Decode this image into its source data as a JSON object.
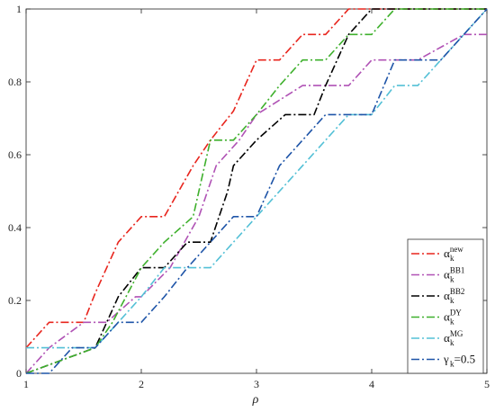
{
  "chart_data": {
    "type": "line",
    "title": "",
    "xlabel": "ρ",
    "ylabel": "",
    "xlim": [
      1,
      5
    ],
    "ylim": [
      0,
      1
    ],
    "xticks": [
      "1",
      "2",
      "3",
      "4",
      "5"
    ],
    "yticks": [
      "0",
      "0.2",
      "0.4",
      "0.6",
      "0.8",
      "1"
    ],
    "grid": false,
    "legend_position": "bottom-right",
    "series": [
      {
        "name": "α_k^new",
        "label_main": "α",
        "label_sub": "k",
        "label_sup": "new",
        "color": "#e8251d",
        "dash": "9,3,2,3",
        "x": [
          1.0,
          1.2,
          1.5,
          1.6,
          1.8,
          2.0,
          2.2,
          2.45,
          2.6,
          2.8,
          3.0,
          3.2,
          3.4,
          3.6,
          3.8,
          4.0,
          5.0
        ],
        "y": [
          0.07,
          0.14,
          0.14,
          0.22,
          0.36,
          0.43,
          0.43,
          0.57,
          0.64,
          0.72,
          0.86,
          0.86,
          0.93,
          0.93,
          1.0,
          1.0,
          1.0
        ]
      },
      {
        "name": "α_k^BB1",
        "label_main": "α",
        "label_sub": "k",
        "label_sup": "BB1",
        "color": "#b052b5",
        "dash": "9,3,2,3",
        "x": [
          1.0,
          1.2,
          1.5,
          1.7,
          1.95,
          2.0,
          2.25,
          2.5,
          2.65,
          2.85,
          3.0,
          3.4,
          3.6,
          3.8,
          4.0,
          4.4,
          4.8,
          5.0
        ],
        "y": [
          0.0,
          0.07,
          0.14,
          0.14,
          0.21,
          0.21,
          0.29,
          0.43,
          0.57,
          0.64,
          0.71,
          0.79,
          0.79,
          0.79,
          0.86,
          0.86,
          0.93,
          0.93
        ]
      },
      {
        "name": "α_k^BB2",
        "label_main": "α",
        "label_sub": "k",
        "label_sup": "BB2",
        "color": "#000000",
        "dash": "9,3,2,3",
        "x": [
          1.0,
          1.6,
          1.7,
          1.8,
          2.0,
          2.2,
          2.4,
          2.6,
          2.75,
          2.8,
          3.0,
          3.25,
          3.5,
          3.6,
          3.8,
          4.0,
          5.0
        ],
        "y": [
          0.0,
          0.07,
          0.14,
          0.21,
          0.29,
          0.29,
          0.36,
          0.36,
          0.5,
          0.57,
          0.64,
          0.71,
          0.71,
          0.79,
          0.93,
          1.0,
          1.0
        ]
      },
      {
        "name": "α_k^DY",
        "label_main": "α",
        "label_sub": "k",
        "label_sup": "DY",
        "color": "#3eb02c",
        "dash": "9,3,2,3",
        "x": [
          1.0,
          1.6,
          1.75,
          2.0,
          2.2,
          2.45,
          2.6,
          2.8,
          3.0,
          3.2,
          3.4,
          3.6,
          3.8,
          4.0,
          4.2,
          5.0
        ],
        "y": [
          0.0,
          0.07,
          0.14,
          0.29,
          0.36,
          0.43,
          0.64,
          0.64,
          0.71,
          0.79,
          0.86,
          0.86,
          0.93,
          0.93,
          1.0,
          1.0
        ]
      },
      {
        "name": "α_k^MG",
        "label_main": "α",
        "label_sub": "k",
        "label_sup": "MG",
        "color": "#53c0d6",
        "dash": "9,3,2,3",
        "x": [
          1.0,
          1.4,
          1.6,
          1.8,
          2.0,
          2.2,
          2.4,
          2.6,
          2.8,
          3.0,
          3.2,
          3.4,
          3.6,
          3.8,
          4.0,
          4.2,
          4.4,
          4.6,
          4.8,
          5.0
        ],
        "y": [
          0.07,
          0.07,
          0.07,
          0.14,
          0.21,
          0.29,
          0.29,
          0.29,
          0.36,
          0.43,
          0.5,
          0.57,
          0.64,
          0.71,
          0.71,
          0.79,
          0.79,
          0.86,
          0.93,
          1.0
        ]
      },
      {
        "name": "γ_k=0.5",
        "label_main": "γ",
        "label_sub": "k",
        "label_sup": "",
        "label_suffix": "=0.5",
        "color": "#1f55a8",
        "dash": "9,3,2,3",
        "x": [
          1.0,
          1.2,
          1.4,
          1.6,
          1.8,
          2.0,
          2.2,
          2.4,
          2.6,
          2.8,
          3.0,
          3.2,
          3.4,
          3.6,
          3.8,
          4.0,
          4.2,
          4.4,
          4.6,
          4.8,
          5.0
        ],
        "y": [
          0.0,
          0.0,
          0.07,
          0.07,
          0.14,
          0.14,
          0.21,
          0.29,
          0.36,
          0.43,
          0.43,
          0.57,
          0.64,
          0.71,
          0.71,
          0.71,
          0.86,
          0.86,
          0.86,
          0.93,
          1.0
        ]
      }
    ]
  }
}
